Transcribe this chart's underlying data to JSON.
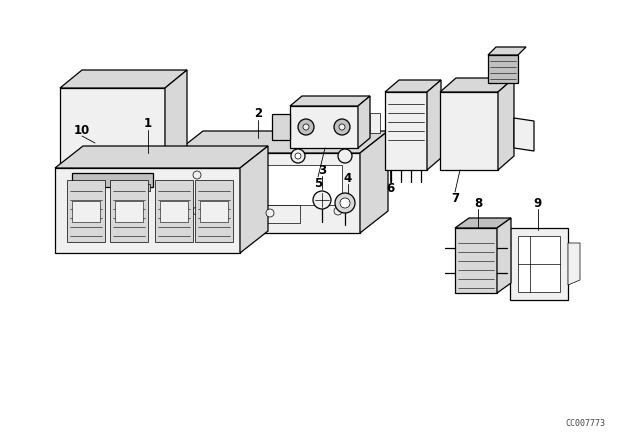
{
  "bg_color": "#ffffff",
  "line_color": "#000000",
  "watermark": "CC007773",
  "lw": 0.9,
  "thin_lw": 0.5,
  "fill_white": "#ffffff",
  "fill_light": "#f0f0f0",
  "fill_mid": "#d8d8d8",
  "fill_dark": "#c0c0c0",
  "label_fontsize": 8.5
}
